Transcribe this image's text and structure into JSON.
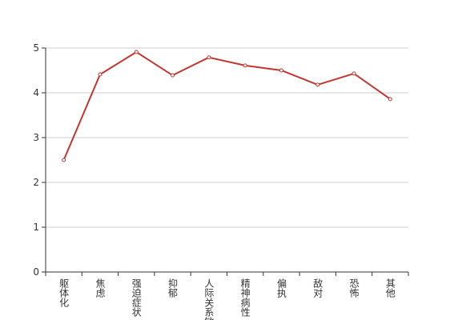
{
  "chart_data": {
    "type": "line",
    "categories": [
      "躯体化",
      "焦虑",
      "强迫症状",
      "抑郁",
      "人际关系敏感",
      "精神病性",
      "偏执",
      "敌对",
      "恐怖",
      "其他"
    ],
    "series": [
      {
        "color": "#c23531",
        "values": [
          2.5,
          4.41,
          4.91,
          4.39,
          4.79,
          4.61,
          4.5,
          4.18,
          4.43,
          3.86
        ]
      }
    ],
    "ylim": [
      0,
      5
    ],
    "yticks": [
      0,
      1,
      2,
      3,
      4,
      5
    ],
    "grid": true
  }
}
